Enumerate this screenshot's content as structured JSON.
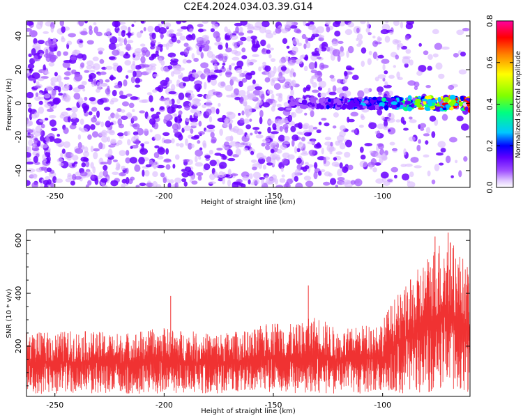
{
  "title": "C2E4.2024.034.03.39.G14",
  "chart_data": [
    {
      "type": "heatmap",
      "xlabel": "Height of straight line (km)",
      "ylabel": "Frequency (Hz)",
      "xlim": [
        -263,
        -60
      ],
      "ylim": [
        -50,
        49
      ],
      "xticks": [
        -250,
        -200,
        -150,
        -100
      ],
      "yticks": [
        -40,
        -20,
        0,
        20,
        40
      ],
      "colorbar": {
        "label": "Normalized spectral amplitude",
        "range": [
          0.0,
          0.8
        ],
        "ticks": [
          "0.0",
          "0.2",
          "0.4",
          "0.6",
          "0.8"
        ],
        "colors": [
          "#ffffff",
          "#e0c8ff",
          "#a050ff",
          "#6000ff",
          "#0000ff",
          "#00c8ff",
          "#00ff80",
          "#80ff00",
          "#ffff00",
          "#ff8000",
          "#ff0000",
          "#ff00a0"
        ]
      },
      "signal_band": {
        "x_start": -140,
        "x_end": -60,
        "frequency_center": 0,
        "peak_amplitude": 0.75
      }
    },
    {
      "type": "line",
      "xlabel": "Height of straight line (km)",
      "ylabel": "SNR (10 * v/v)",
      "xlim": [
        -263,
        -60
      ],
      "ylim": [
        10,
        640
      ],
      "xticks": [
        -250,
        -200,
        -150,
        -100
      ],
      "yticks": [
        200,
        400,
        600
      ],
      "color": "#f03232",
      "envelope": {
        "x": [
          -263,
          -240,
          -220,
          -200,
          -180,
          -160,
          -150,
          -140,
          -130,
          -120,
          -110,
          -100,
          -95,
          -90,
          -85,
          -80,
          -75,
          -70,
          -65,
          -62,
          -60
        ],
        "low": [
          20,
          20,
          20,
          20,
          20,
          20,
          20,
          20,
          20,
          20,
          20,
          20,
          20,
          20,
          20,
          15,
          15,
          15,
          20,
          20,
          20
        ],
        "high": [
          250,
          260,
          250,
          270,
          250,
          260,
          300,
          280,
          320,
          260,
          280,
          300,
          380,
          420,
          480,
          540,
          600,
          620,
          560,
          520,
          500
        ]
      },
      "notable_peaks": [
        {
          "x": -197,
          "y": 390
        },
        {
          "x": -134,
          "y": 430
        },
        {
          "x": -76,
          "y": 615
        },
        {
          "x": -70,
          "y": 630
        }
      ]
    }
  ]
}
